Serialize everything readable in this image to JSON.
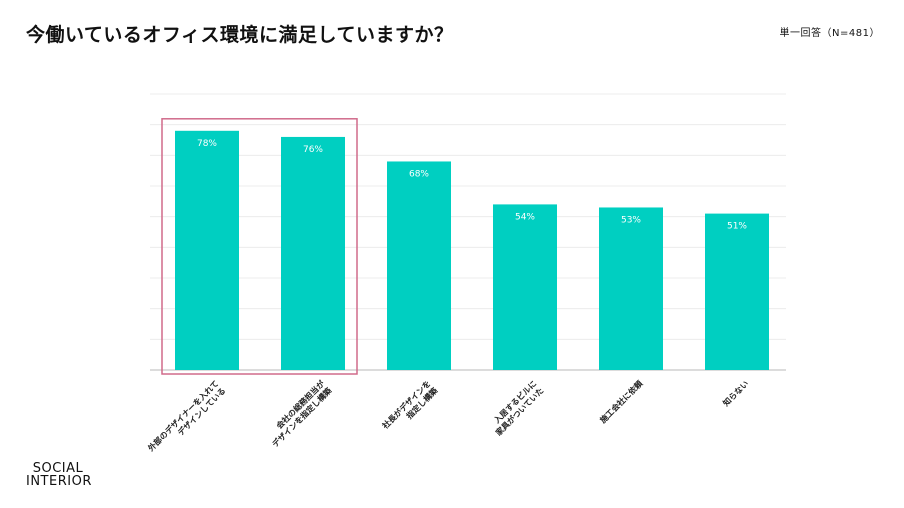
{
  "title": "今働いているオフィス環境に満足していますか？",
  "note": "単一回答（N=481）",
  "logo": {
    "line1": "SOCIAL",
    "line2": "INTERIOR"
  },
  "colors": {
    "bar": "#00cfc1",
    "highlight": "#d06a8a",
    "grid": "#ececec",
    "axis": "#b8b8b8"
  },
  "chart_data": {
    "type": "bar",
    "categories": [
      "外部のデザイナーを入れて\nデザインしている",
      "会社の総務担当が\nデザインを指定し構築",
      "社長がデザインを\n指定し構築",
      "入居するビルに\n家具がついていた",
      "施工会社に依頼",
      "知らない"
    ],
    "values": [
      78,
      76,
      68,
      54,
      53,
      51
    ],
    "value_labels": [
      "78%",
      "76%",
      "68%",
      "54%",
      "53%",
      "51%"
    ],
    "ylim": [
      0,
      90
    ],
    "grid": true,
    "highlighted_categories": [
      0,
      1
    ]
  }
}
